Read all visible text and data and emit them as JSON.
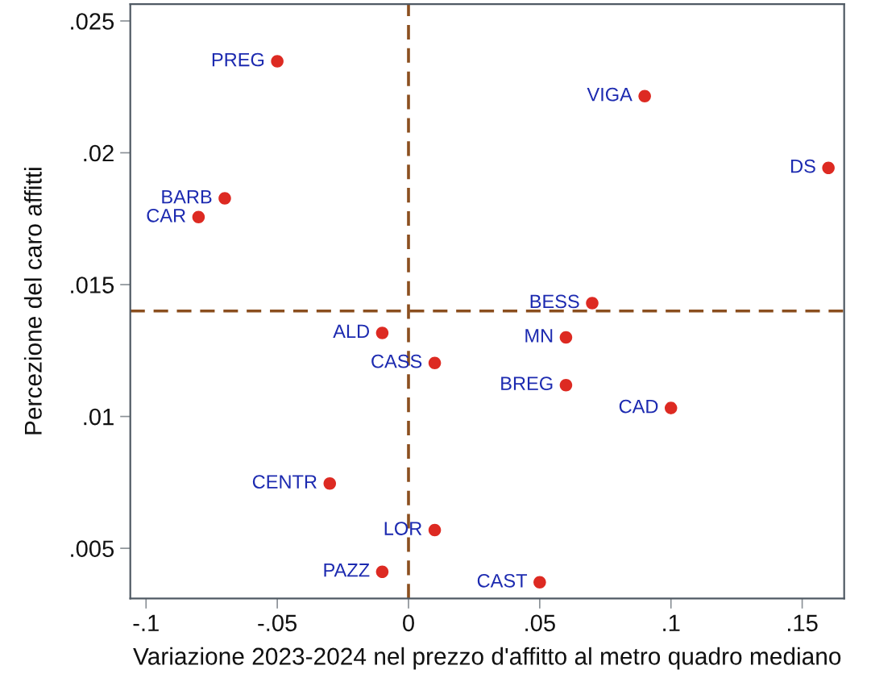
{
  "chart_data": {
    "type": "scatter",
    "xlabel": "Variazione 2023-2024 nel prezzo d'affitto al metro quadro mediano",
    "ylabel": "Percezione del caro affitti",
    "x": [
      -0.05,
      -0.07,
      -0.08,
      0.09,
      0.16,
      0.07,
      -0.01,
      0.01,
      -0.03,
      0.01,
      -0.01,
      0.06,
      0.06,
      0.1,
      0.05
    ],
    "series": [
      {
        "color": "#dd2a22",
        "values": [
          0.02347,
          0.01827,
          0.01756,
          0.02215,
          0.01943,
          0.0143,
          0.01317,
          0.01203,
          0.00746,
          0.00569,
          0.00411,
          0.013,
          0.01119,
          0.01032,
          0.00371
        ]
      }
    ],
    "marker": "circle",
    "xlim": [
      -0.106,
      0.166
    ],
    "ylim": [
      0.0031,
      0.02564
    ],
    "xticks": [
      {
        "value": -0.1,
        "label": "-.1"
      },
      {
        "value": -0.05,
        "label": "-.05"
      },
      0,
      {
        "value": 0.05,
        "label": ".05"
      },
      {
        "value": 0.1,
        "label": ".1"
      },
      {
        "value": 0.15,
        "label": ".15"
      }
    ],
    "yticks": [
      {
        "value": 0.005,
        "label": ".005"
      },
      {
        "value": 0.01,
        "label": ".01"
      },
      {
        "value": 0.015,
        "label": ".015"
      },
      {
        "value": 0.02,
        "label": ".02"
      },
      {
        "value": 0.025,
        "label": ".025"
      }
    ],
    "ref_lines": [
      {
        "axis": "x",
        "value": 0,
        "color": "#8b4f1f",
        "line_style": "dashed"
      },
      {
        "axis": "y",
        "value": 0.014,
        "color": "#8b4f1f",
        "line_style": "dashed"
      }
    ],
    "annotations": [
      {
        "text": "PREG",
        "x": -0.05,
        "y": 0.02347
      },
      {
        "text": "BARB",
        "x": -0.07,
        "y": 0.01827
      },
      {
        "text": "CAR",
        "x": -0.08,
        "y": 0.01756
      },
      {
        "text": "VIGA",
        "x": 0.09,
        "y": 0.02215
      },
      {
        "text": "DS",
        "x": 0.16,
        "y": 0.01943
      },
      {
        "text": "BESS",
        "x": 0.07,
        "y": 0.0143
      },
      {
        "text": "ALD",
        "x": -0.01,
        "y": 0.01317
      },
      {
        "text": "CASS",
        "x": 0.01,
        "y": 0.01203
      },
      {
        "text": "CENTR",
        "x": -0.03,
        "y": 0.00746
      },
      {
        "text": "LOR",
        "x": 0.01,
        "y": 0.00569
      },
      {
        "text": "PAZZ",
        "x": -0.01,
        "y": 0.00411
      },
      {
        "text": "MN",
        "x": 0.06,
        "y": 0.013
      },
      {
        "text": "BREG",
        "x": 0.06,
        "y": 0.01119
      },
      {
        "text": "CAD",
        "x": 0.1,
        "y": 0.01032
      },
      {
        "text": "CAST",
        "x": 0.05,
        "y": 0.00371
      }
    ]
  }
}
